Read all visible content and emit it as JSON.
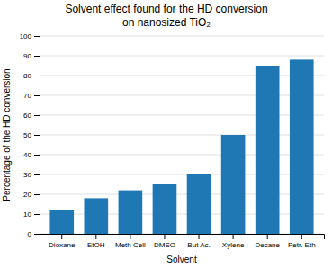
{
  "chart_data": {
    "type": "bar",
    "title": "Solvent effect found for the HD conversion\non nanosized TiO₂",
    "xlabel": "Solvent",
    "ylabel": "Percentage of the HD conversion",
    "categories": [
      "Dioxane",
      "EtOH",
      "Meth Cell",
      "DMSO",
      "But Ac.",
      "Xylene",
      "Decane",
      "Petr. Eth"
    ],
    "values": [
      12,
      18,
      22,
      25,
      30,
      50,
      85,
      88
    ],
    "ylim": [
      0,
      100
    ],
    "yticks": [
      0,
      10,
      20,
      30,
      40,
      50,
      60,
      70,
      80,
      90,
      100
    ],
    "grid": true
  }
}
